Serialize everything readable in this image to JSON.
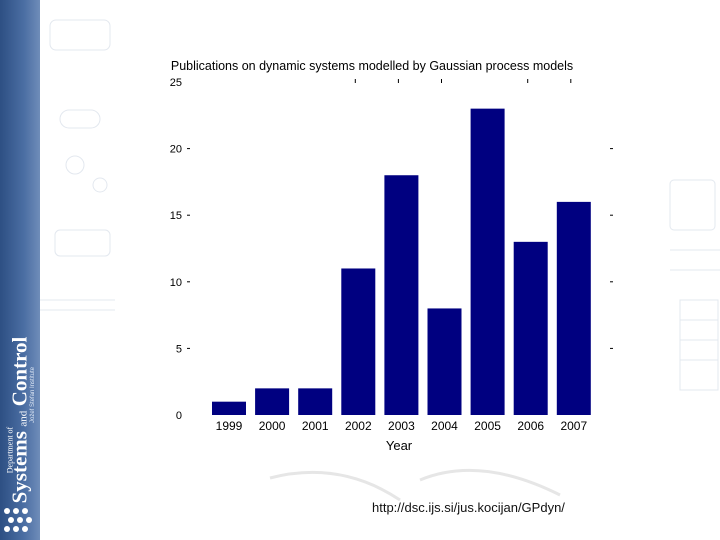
{
  "branding": {
    "department_prefix": "Department of",
    "name_part1": "Systems",
    "name_and": "and",
    "name_part2": "Control",
    "institute": "Jožef Stefan Institute"
  },
  "footer": {
    "source_url": "http://dsc.ijs.si/jus.kocijan/GPdyn/"
  },
  "colors": {
    "bar": "#000080",
    "strip": "#3a5c90"
  },
  "chart_data": {
    "type": "bar",
    "title": "Publications on dynamic systems modelled by Gaussian process models",
    "xlabel": "Year",
    "ylabel": "",
    "categories": [
      "1999",
      "2000",
      "2001",
      "2002",
      "2003",
      "2004",
      "2005",
      "2006",
      "2007"
    ],
    "values": [
      1,
      2,
      2,
      11,
      18,
      8,
      23,
      13,
      16
    ],
    "ylim": [
      0,
      25
    ],
    "yticks": [
      0,
      5,
      10,
      15,
      20,
      25
    ],
    "grid": false,
    "legend": "none"
  }
}
